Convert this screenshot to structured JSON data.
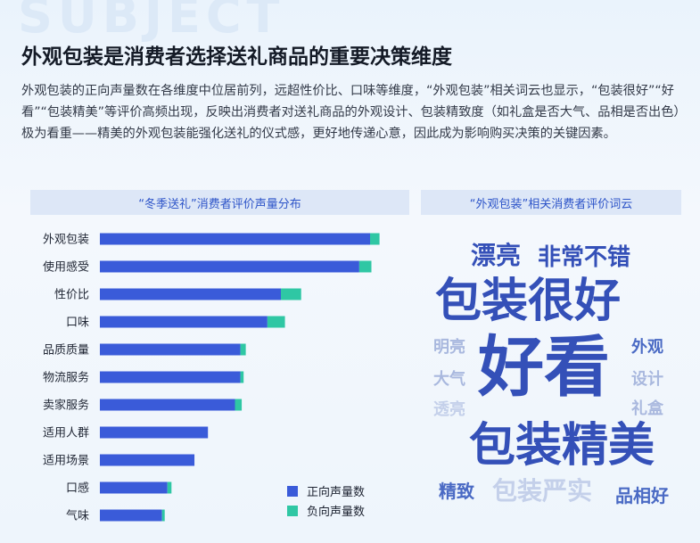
{
  "header": {
    "bg_word": "SUBJECT",
    "title": "外观包装是消费者选择送礼商品的重要决策维度",
    "description": "外观包装的正向声量数在各维度中位居前列，远超性价比、口味等维度，“外观包装”相关词云也显示，“包装很好”“好看”“包装精美”等评价高频出现，反映出消费者对送礼商品的外观设计、包装精致度（如礼盒是否大气、品相是否出色）极为看重——精美的外观包装能强化送礼的仪式感，更好地传递心意，因此成为影响购买决策的关键因素。"
  },
  "colors": {
    "positive": "#3a5bd9",
    "negative": "#2fc7a4",
    "accent_text": "#2d54c8",
    "word_dark": "#3450b8",
    "word_mid": "#4a6ac4",
    "word_light": "#a9b8de",
    "word_pale": "#c4d0ea"
  },
  "chart_data": {
    "type": "bar",
    "orientation": "horizontal",
    "stacked": true,
    "title": "“冬季送礼”消费者评价声量分布",
    "categories": [
      "外观包装",
      "使用感受",
      "性价比",
      "口味",
      "品质质量",
      "物流服务",
      "卖家服务",
      "适用人群",
      "适用场景",
      "口感",
      "气味"
    ],
    "series": [
      {
        "name": "正向声量数",
        "color": "#3a5bd9",
        "values": [
          100,
          96,
          67,
          62,
          52,
          52,
          50,
          40,
          35,
          25,
          23
        ]
      },
      {
        "name": "负向声量数",
        "color": "#2fc7a4",
        "values": [
          3.5,
          4.5,
          7.5,
          6.5,
          2,
          1.2,
          2.5,
          0,
          0,
          1.5,
          1
        ]
      }
    ],
    "legend_position": "bottom-right",
    "grid": false,
    "xaxis_visible": false
  },
  "wordcloud": {
    "title": "“外观包装”相关消费者评价词云",
    "words": [
      {
        "text": "漂亮",
        "weight": "medium"
      },
      {
        "text": "非常不错",
        "weight": "medium"
      },
      {
        "text": "包装很好",
        "weight": "large"
      },
      {
        "text": "明亮",
        "weight": "small-light"
      },
      {
        "text": "好看",
        "weight": "largest"
      },
      {
        "text": "外观",
        "weight": "small"
      },
      {
        "text": "大气",
        "weight": "small-light"
      },
      {
        "text": "设计",
        "weight": "small-light"
      },
      {
        "text": "透亮",
        "weight": "small-pale"
      },
      {
        "text": "礼盒",
        "weight": "small-light"
      },
      {
        "text": "包装精美",
        "weight": "large"
      },
      {
        "text": "精致",
        "weight": "small"
      },
      {
        "text": "包装严实",
        "weight": "medium-pale"
      },
      {
        "text": "品相好",
        "weight": "small"
      }
    ]
  }
}
